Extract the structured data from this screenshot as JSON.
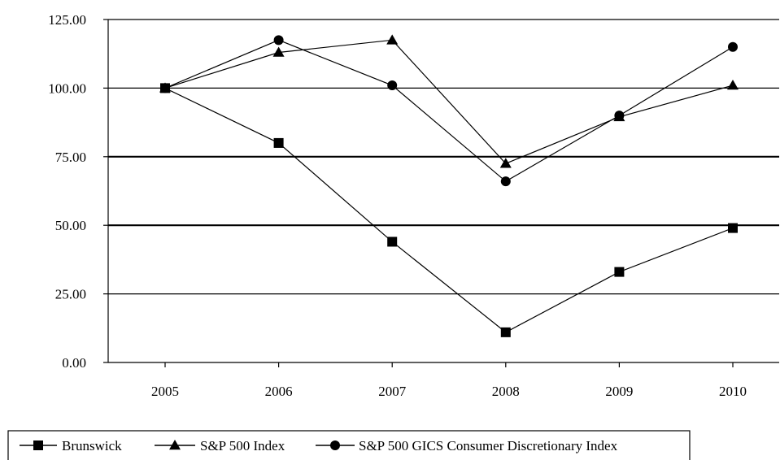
{
  "chart_data": {
    "type": "line",
    "title": "",
    "xlabel": "",
    "ylabel": "",
    "x": [
      "2005",
      "2006",
      "2007",
      "2008",
      "2009",
      "2010"
    ],
    "ylim": [
      0,
      125
    ],
    "yticks": [
      "0.00",
      "25.00",
      "50.00",
      "75.00",
      "100.00",
      "125.00"
    ],
    "ytick_values": [
      0,
      25,
      50,
      75,
      100,
      125
    ],
    "grid": "horizontal",
    "legend_position": "bottom",
    "series": [
      {
        "name": "Brunswick",
        "marker": "square",
        "values": [
          100.0,
          80.0,
          44.0,
          11.0,
          33.0,
          49.0
        ]
      },
      {
        "name": "S&P 500 Index",
        "marker": "triangle",
        "values": [
          100.0,
          113.0,
          117.5,
          72.5,
          89.5,
          101.0
        ]
      },
      {
        "name": "S&P 500 GICS Consumer Discretionary Index",
        "marker": "circle",
        "values": [
          100.0,
          117.5,
          101.0,
          66.0,
          90.0,
          115.0
        ]
      }
    ],
    "line_color": "#000000"
  }
}
